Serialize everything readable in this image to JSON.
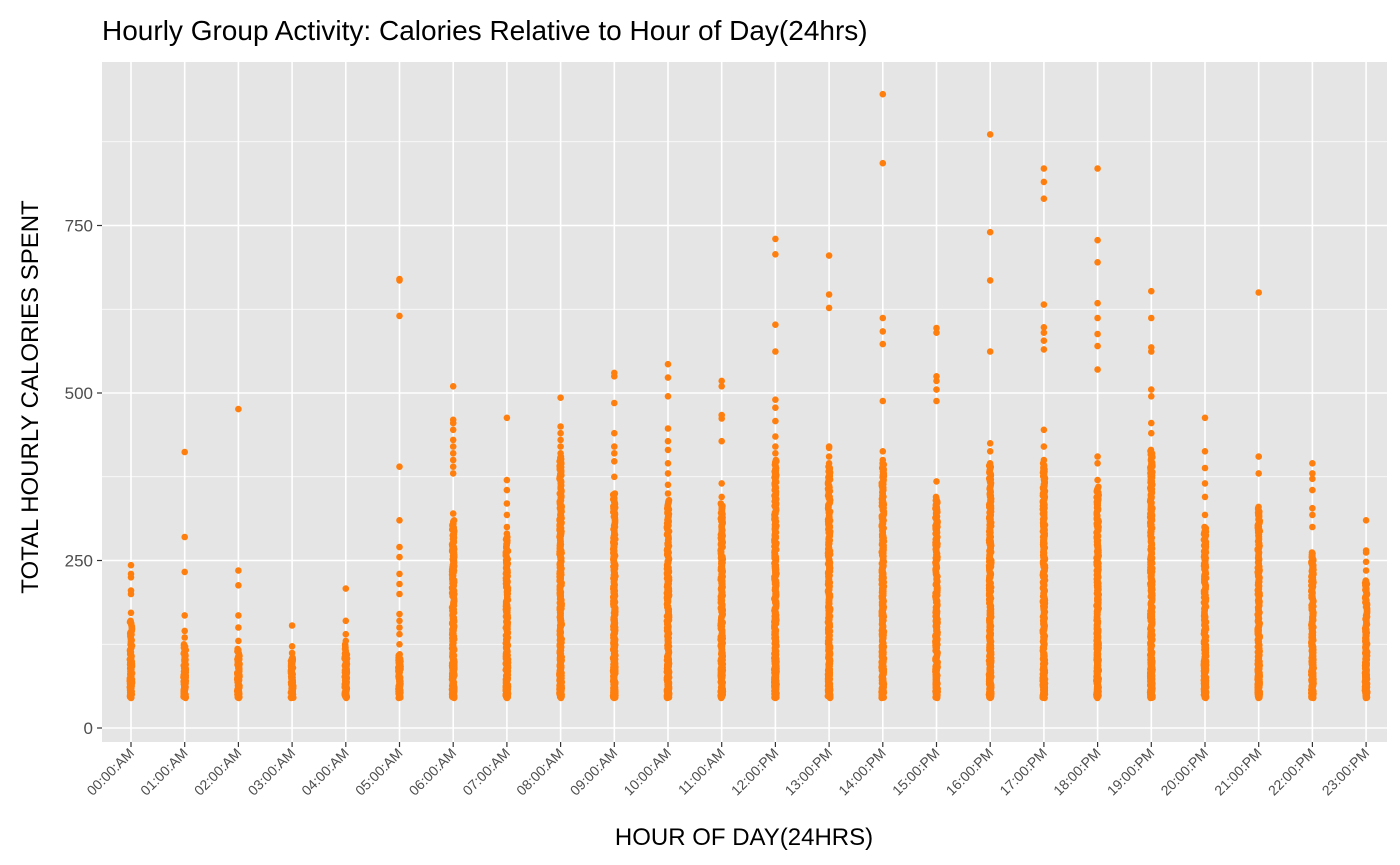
{
  "chart_data": {
    "type": "scatter",
    "title": "Hourly Group Activity: Calories Relative to Hour of Day(24hrs)",
    "xlabel": "HOUR OF DAY(24HRS)",
    "ylabel": "TOTAL HOURLY CALORIES SPENT",
    "categories": [
      "00:00:AM",
      "01:00:AM",
      "02:00:AM",
      "03:00:AM",
      "04:00:AM",
      "05:00:AM",
      "06:00:AM",
      "07:00:AM",
      "08:00:AM",
      "09:00:AM",
      "10:00:AM",
      "11:00:AM",
      "12:00:PM",
      "13:00:PM",
      "14:00:PM",
      "15:00:PM",
      "16:00:PM",
      "17:00:PM",
      "18:00:PM",
      "19:00:PM",
      "20:00:PM",
      "21:00:PM",
      "22:00:PM",
      "23:00:PM"
    ],
    "ylim": [
      0,
      1000
    ],
    "yticks": [
      0,
      250,
      500,
      750
    ],
    "ytick_labels": [
      "0",
      "250",
      "500",
      "750"
    ],
    "grid": true,
    "point_color": "#FF7F0E",
    "panel_background": "#E5E5E5",
    "grid_color": "#FFFFFF",
    "series": [
      {
        "x": "00:00:AM",
        "dense_range": [
          45,
          160
        ],
        "outliers": [
          172,
          200,
          205,
          225,
          230,
          243
        ]
      },
      {
        "x": "01:00:AM",
        "dense_range": [
          45,
          125
        ],
        "outliers": [
          135,
          145,
          168,
          233,
          285,
          412
        ]
      },
      {
        "x": "02:00:AM",
        "dense_range": [
          45,
          118
        ],
        "outliers": [
          130,
          150,
          168,
          213,
          235,
          476
        ]
      },
      {
        "x": "03:00:AM",
        "dense_range": [
          45,
          105
        ],
        "outliers": [
          112,
          122,
          153
        ]
      },
      {
        "x": "04:00:AM",
        "dense_range": [
          45,
          125
        ],
        "outliers": [
          130,
          140,
          160,
          208
        ]
      },
      {
        "x": "05:00:AM",
        "dense_range": [
          45,
          110
        ],
        "outliers": [
          125,
          140,
          150,
          160,
          170,
          200,
          215,
          230,
          255,
          270,
          310,
          390,
          615,
          668,
          670
        ]
      },
      {
        "x": "06:00:AM",
        "dense_range": [
          45,
          310
        ],
        "outliers": [
          320,
          380,
          390,
          400,
          410,
          420,
          430,
          445,
          455,
          460,
          510
        ]
      },
      {
        "x": "07:00:AM",
        "dense_range": [
          45,
          285
        ],
        "outliers": [
          290,
          300,
          318,
          335,
          355,
          370,
          463
        ]
      },
      {
        "x": "08:00:AM",
        "dense_range": [
          45,
          405
        ],
        "outliers": [
          410,
          420,
          430,
          440,
          450,
          493
        ]
      },
      {
        "x": "09:00:AM",
        "dense_range": [
          45,
          350
        ],
        "outliers": [
          375,
          398,
          410,
          420,
          440,
          485,
          525,
          530
        ]
      },
      {
        "x": "10:00:AM",
        "dense_range": [
          45,
          340
        ],
        "outliers": [
          350,
          363,
          380,
          395,
          415,
          428,
          447,
          495,
          523,
          543
        ]
      },
      {
        "x": "11:00:AM",
        "dense_range": [
          45,
          335
        ],
        "outliers": [
          345,
          365,
          428,
          462,
          467,
          510,
          518
        ]
      },
      {
        "x": "12:00:PM",
        "dense_range": [
          45,
          400
        ],
        "outliers": [
          410,
          420,
          435,
          458,
          478,
          490,
          562,
          602,
          707,
          730
        ]
      },
      {
        "x": "13:00:PM",
        "dense_range": [
          45,
          390
        ],
        "outliers": [
          395,
          405,
          418,
          420,
          627,
          647,
          705
        ]
      },
      {
        "x": "14:00:PM",
        "dense_range": [
          45,
          395
        ],
        "outliers": [
          400,
          413,
          488,
          573,
          592,
          612,
          843,
          946
        ]
      },
      {
        "x": "15:00:PM",
        "dense_range": [
          45,
          345
        ],
        "outliers": [
          368,
          488,
          505,
          518,
          525,
          590,
          597
        ]
      },
      {
        "x": "16:00:PM",
        "dense_range": [
          45,
          395
        ],
        "outliers": [
          413,
          425,
          562,
          668,
          740,
          886
        ]
      },
      {
        "x": "17:00:PM",
        "dense_range": [
          45,
          395
        ],
        "outliers": [
          400,
          420,
          445,
          565,
          578,
          590,
          598,
          632,
          790,
          815,
          835
        ]
      },
      {
        "x": "18:00:PM",
        "dense_range": [
          45,
          360
        ],
        "outliers": [
          370,
          395,
          405,
          535,
          570,
          588,
          612,
          634,
          695,
          728,
          835
        ]
      },
      {
        "x": "19:00:PM",
        "dense_range": [
          45,
          415
        ],
        "outliers": [
          440,
          455,
          495,
          505,
          562,
          568,
          612,
          652
        ]
      },
      {
        "x": "20:00:PM",
        "dense_range": [
          45,
          300
        ],
        "outliers": [
          318,
          345,
          365,
          388,
          413,
          463
        ]
      },
      {
        "x": "21:00:PM",
        "dense_range": [
          45,
          330
        ],
        "outliers": [
          380,
          405,
          650
        ]
      },
      {
        "x": "22:00:PM",
        "dense_range": [
          45,
          262
        ],
        "outliers": [
          300,
          318,
          328,
          355,
          372,
          380,
          395
        ]
      },
      {
        "x": "23:00:PM",
        "dense_range": [
          45,
          220
        ],
        "outliers": [
          235,
          248,
          262,
          265,
          310
        ]
      }
    ]
  }
}
